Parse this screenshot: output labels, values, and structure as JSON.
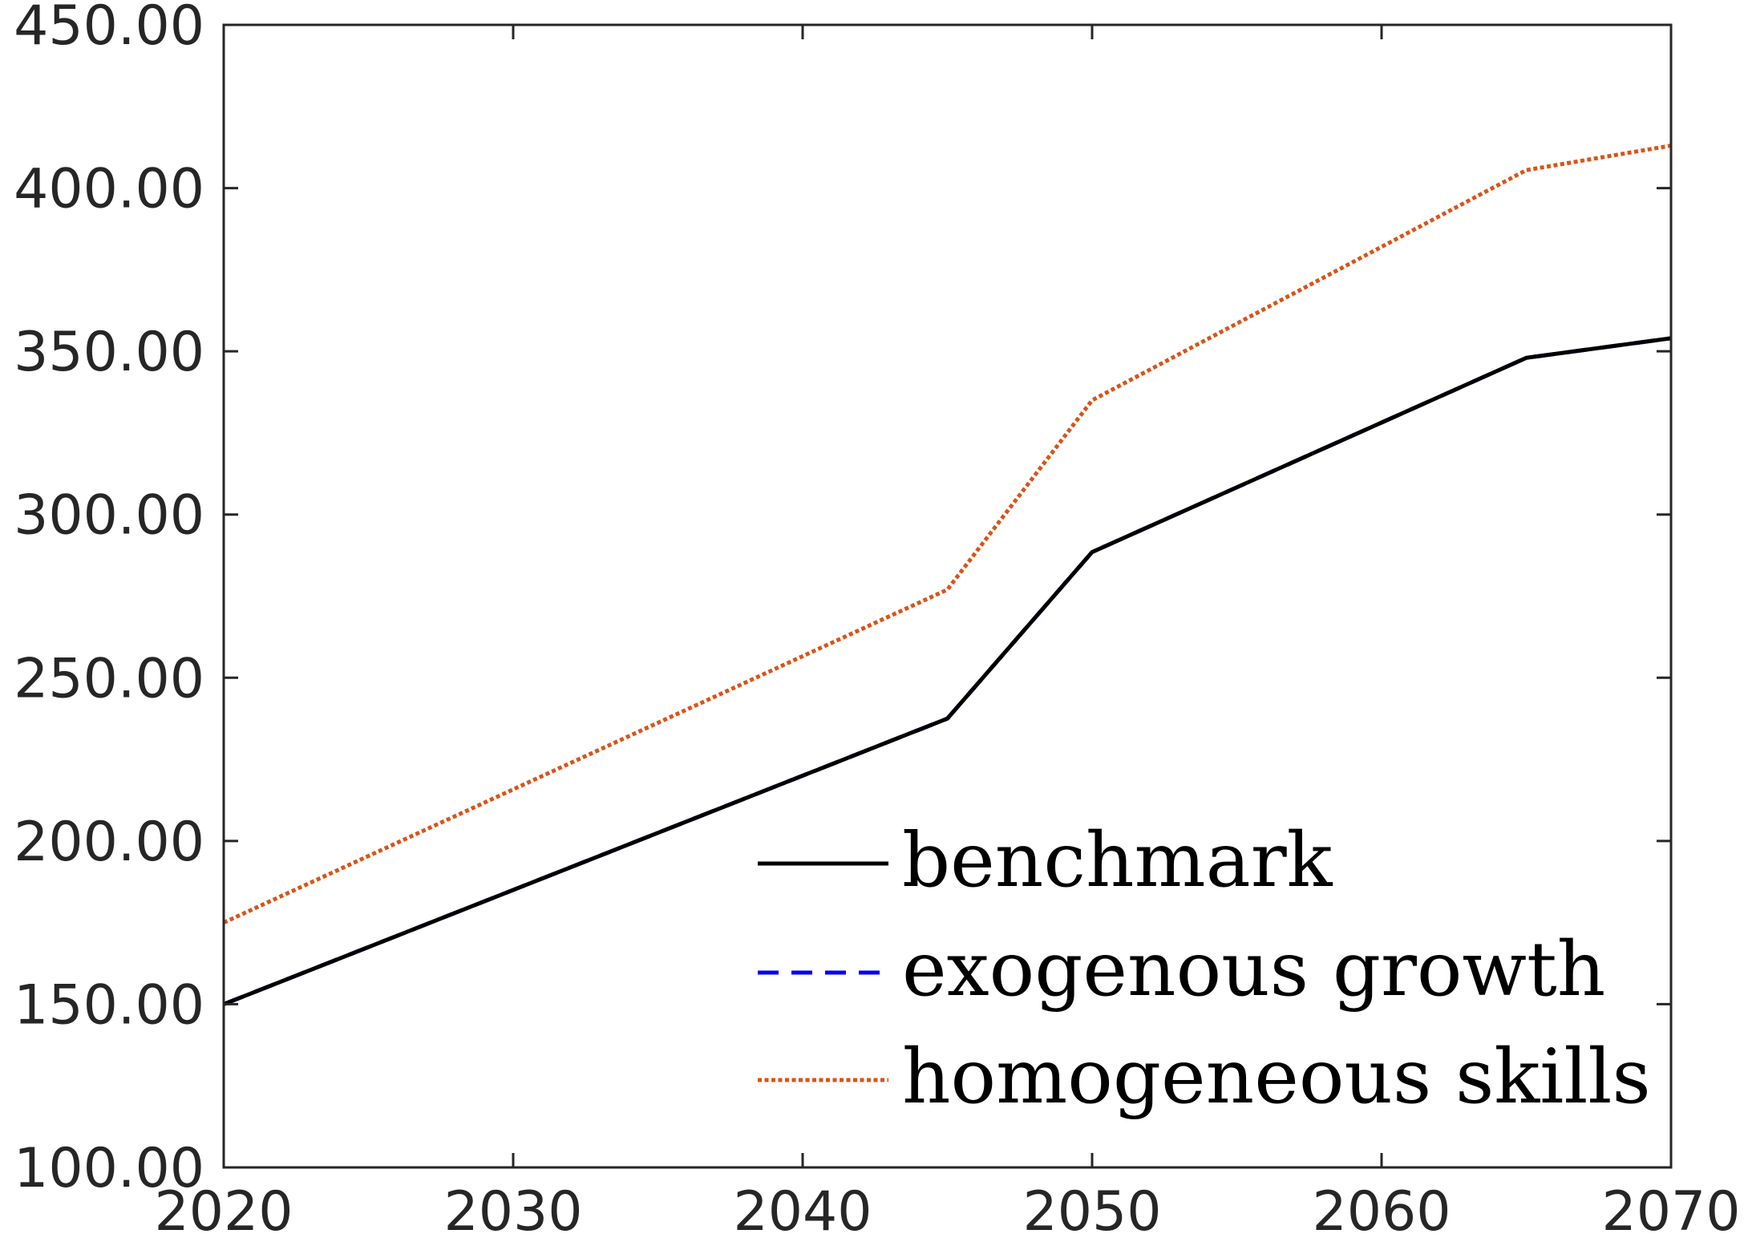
{
  "chart_data": {
    "type": "line",
    "title": "",
    "xlabel": "",
    "ylabel": "",
    "xlim": [
      2020,
      2070
    ],
    "ylim": [
      100,
      450
    ],
    "xticks": [
      2020,
      2030,
      2040,
      2050,
      2060,
      2070
    ],
    "yticks": [
      100,
      150,
      200,
      250,
      300,
      350,
      400,
      450
    ],
    "xtick_labels": [
      "2020",
      "2030",
      "2040",
      "2050",
      "2060",
      "2070"
    ],
    "ytick_labels": [
      "100.00",
      "150.00",
      "200.00",
      "250.00",
      "300.00",
      "350.00",
      "400.00",
      "450.00"
    ],
    "grid": false,
    "legend_position": "bottom-right",
    "series": [
      {
        "name": "benchmark",
        "color": "#000000",
        "style": "solid",
        "x": [
          2020,
          2045,
          2050,
          2065,
          2070
        ],
        "y": [
          150,
          237.5,
          288.5,
          348,
          354
        ]
      },
      {
        "name": "exogenous growth",
        "color": "#0000ff",
        "style": "dashed",
        "x": [
          2020,
          2045,
          2050,
          2065,
          2070
        ],
        "y": [
          150,
          237.5,
          288.5,
          348,
          354
        ]
      },
      {
        "name": "homogeneous skills",
        "color": "#d95319",
        "style": "dotted",
        "x": [
          2020,
          2045,
          2050,
          2065,
          2070
        ],
        "y": [
          175,
          277,
          335,
          405.5,
          413
        ]
      }
    ]
  }
}
